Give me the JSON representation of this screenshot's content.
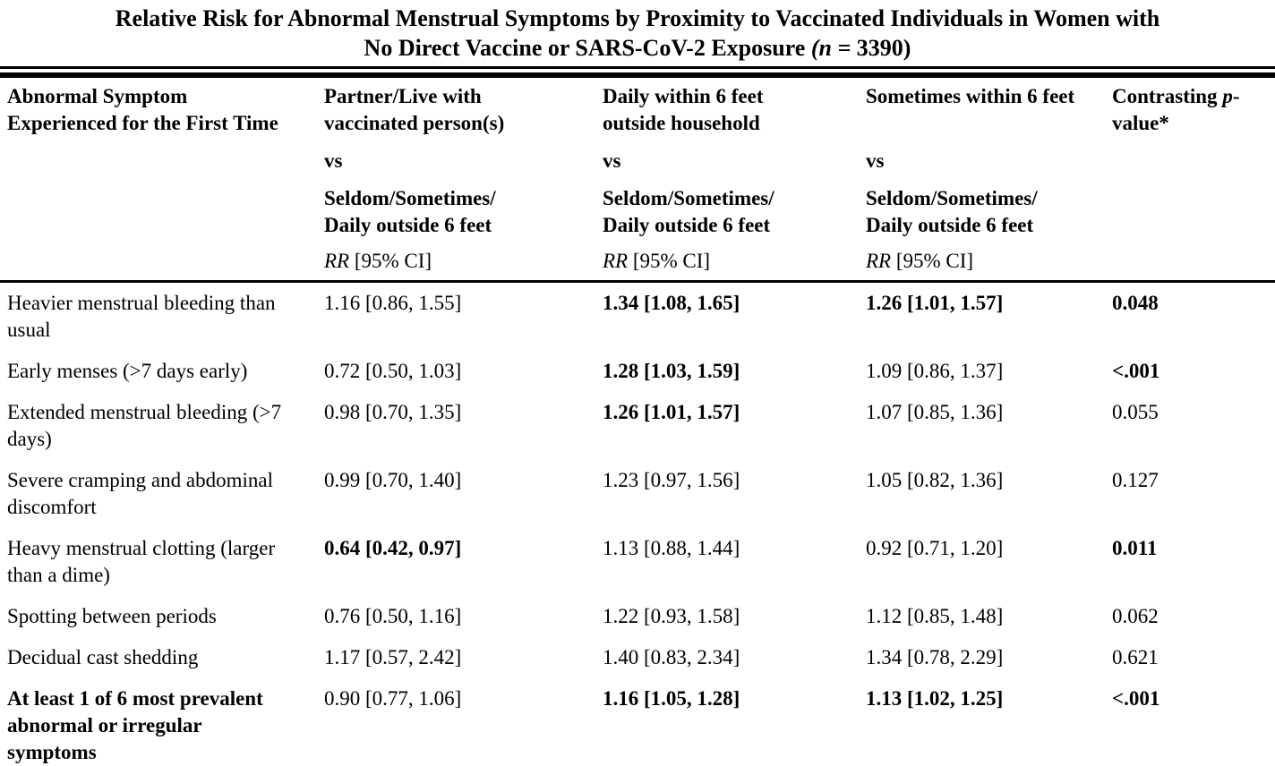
{
  "title": {
    "line1": "Relative Risk for Abnormal Menstrual Symptoms by Proximity to Vaccinated Individuals in Women with",
    "line2_pre": "No Direct Vaccine or SARS-CoV-2 Exposure ",
    "n_italic": "(n = ",
    "n_rest": "3390)"
  },
  "table": {
    "corner_header": "Abnormal Symptom Experienced for the First Time",
    "columns": [
      {
        "exposure": "Partner/Live with vaccinated person(s)",
        "vs": "vs",
        "comparator_line1": "Seldom/Sometimes/",
        "comparator_line2": "Daily outside 6 feet",
        "rr_label": "RR",
        "rr_rest": " [95% CI]"
      },
      {
        "exposure": "Daily within 6 feet outside household",
        "vs": "vs",
        "comparator_line1": "Seldom/Sometimes/",
        "comparator_line2": "Daily outside 6 feet",
        "rr_label": "RR",
        "rr_rest": " [95% CI]"
      },
      {
        "exposure": "Sometimes within 6 feet",
        "vs": "vs",
        "comparator_line1": "Seldom/Sometimes/",
        "comparator_line2": "Daily outside 6 feet",
        "rr_label": "RR",
        "rr_rest": " [95% CI]"
      }
    ],
    "p_header": {
      "pre": "Contrasting ",
      "italic": "p",
      "post": "-value*"
    },
    "rows": [
      {
        "label": "Heavier menstrual bleeding than usual",
        "label_bold": false,
        "cells": [
          {
            "text": "1.16 [0.86, 1.55]",
            "bold": false
          },
          {
            "text": "1.34 [1.08, 1.65]",
            "bold": true
          },
          {
            "text": "1.26 [1.01, 1.57]",
            "bold": true
          }
        ],
        "p": {
          "text": "0.048",
          "bold": true
        }
      },
      {
        "label": "Early menses (>7 days early)",
        "label_bold": false,
        "cells": [
          {
            "text": "0.72 [0.50, 1.03]",
            "bold": false
          },
          {
            "text": "1.28 [1.03, 1.59]",
            "bold": true
          },
          {
            "text": "1.09 [0.86, 1.37]",
            "bold": false
          }
        ],
        "p": {
          "text": "<.001",
          "bold": true
        }
      },
      {
        "label": "Extended menstrual bleeding (>7 days)",
        "label_bold": false,
        "cells": [
          {
            "text": "0.98 [0.70, 1.35]",
            "bold": false
          },
          {
            "text": "1.26 [1.01, 1.57]",
            "bold": true
          },
          {
            "text": "1.07 [0.85, 1.36]",
            "bold": false
          }
        ],
        "p": {
          "text": "0.055",
          "bold": false
        }
      },
      {
        "label": "Severe cramping and abdominal discomfort",
        "label_bold": false,
        "cells": [
          {
            "text": "0.99 [0.70, 1.40]",
            "bold": false
          },
          {
            "text": "1.23 [0.97, 1.56]",
            "bold": false
          },
          {
            "text": "1.05 [0.82, 1.36]",
            "bold": false
          }
        ],
        "p": {
          "text": "0.127",
          "bold": false
        }
      },
      {
        "label": "Heavy menstrual clotting (larger than a dime)",
        "label_bold": false,
        "cells": [
          {
            "text": "0.64 [0.42, 0.97]",
            "bold": true
          },
          {
            "text": "1.13 [0.88, 1.44]",
            "bold": false
          },
          {
            "text": "0.92 [0.71, 1.20]",
            "bold": false
          }
        ],
        "p": {
          "text": "0.011",
          "bold": true
        }
      },
      {
        "label": "Spotting between periods",
        "label_bold": false,
        "cells": [
          {
            "text": "0.76 [0.50, 1.16]",
            "bold": false
          },
          {
            "text": "1.22 [0.93, 1.58]",
            "bold": false
          },
          {
            "text": "1.12 [0.85, 1.48]",
            "bold": false
          }
        ],
        "p": {
          "text": "0.062",
          "bold": false
        }
      },
      {
        "label": "Decidual cast shedding",
        "label_bold": false,
        "cells": [
          {
            "text": "1.17 [0.57, 2.42]",
            "bold": false
          },
          {
            "text": "1.40 [0.83, 2.34]",
            "bold": false
          },
          {
            "text": "1.34 [0.78, 2.29]",
            "bold": false
          }
        ],
        "p": {
          "text": "0.621",
          "bold": false
        }
      },
      {
        "label": "At least 1 of 6 most prevalent abnormal or irregular symptoms",
        "label_bold": true,
        "cells": [
          {
            "text": "0.90 [0.77, 1.06]",
            "bold": false
          },
          {
            "text": "1.16 [1.05, 1.28]",
            "bold": true
          },
          {
            "text": "1.13 [1.02, 1.25]",
            "bold": true
          }
        ],
        "p": {
          "text": "<.001",
          "bold": true
        }
      }
    ]
  }
}
